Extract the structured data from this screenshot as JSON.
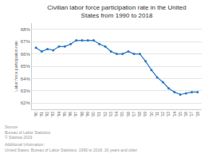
{
  "chart_data": {
    "type": "line",
    "title": "Civilian labor force participation rate in the United States from 1990 to 2018",
    "ylabel": "Labor force participation rate",
    "x": [
      1990,
      1991,
      1992,
      1993,
      1994,
      1995,
      1996,
      1997,
      1998,
      1999,
      2000,
      2001,
      2002,
      2003,
      2004,
      2005,
      2006,
      2007,
      2008,
      2009,
      2010,
      2011,
      2012,
      2013,
      2014,
      2015,
      2016,
      2017,
      2018
    ],
    "values": [
      66.5,
      66.2,
      66.4,
      66.3,
      66.6,
      66.6,
      66.8,
      67.1,
      67.1,
      67.1,
      67.1,
      66.8,
      66.6,
      66.2,
      66.0,
      66.0,
      66.2,
      66.0,
      66.0,
      65.4,
      64.7,
      64.1,
      63.7,
      63.2,
      62.9,
      62.7,
      62.8,
      62.9,
      62.9
    ],
    "color": "#2878c8",
    "marker": "circle",
    "xlim": [
      1989.3,
      2018.7
    ],
    "xticks": [
      {
        "value": 1990,
        "label": "'90"
      },
      {
        "value": 1991,
        "label": "'91"
      },
      {
        "value": 1992,
        "label": "'92"
      },
      {
        "value": 1993,
        "label": "'93"
      },
      {
        "value": 1994,
        "label": "'94"
      },
      {
        "value": 1995,
        "label": "'95"
      },
      {
        "value": 1996,
        "label": "'96"
      },
      {
        "value": 1997,
        "label": "'97"
      },
      {
        "value": 1998,
        "label": "'98"
      },
      {
        "value": 1999,
        "label": "'99"
      },
      {
        "value": 2000,
        "label": "'00"
      },
      {
        "value": 2001,
        "label": "'01"
      },
      {
        "value": 2002,
        "label": "'02"
      },
      {
        "value": 2003,
        "label": "'03"
      },
      {
        "value": 2004,
        "label": "'04"
      },
      {
        "value": 2005,
        "label": "'05"
      },
      {
        "value": 2006,
        "label": "'06"
      },
      {
        "value": 2007,
        "label": "'07"
      },
      {
        "value": 2008,
        "label": "'08"
      },
      {
        "value": 2009,
        "label": "'09"
      },
      {
        "value": 2010,
        "label": "'10"
      },
      {
        "value": 2011,
        "label": "'11"
      },
      {
        "value": 2012,
        "label": "'12"
      },
      {
        "value": 2013,
        "label": "'13"
      },
      {
        "value": 2014,
        "label": "'14"
      },
      {
        "value": 2015,
        "label": "'15"
      },
      {
        "value": 2016,
        "label": "'16"
      },
      {
        "value": 2017,
        "label": "'17"
      },
      {
        "value": 2018,
        "label": "'18"
      }
    ],
    "ylim": [
      61.5,
      68.5
    ],
    "yticks": [
      {
        "value": 62.0,
        "label": "62%"
      },
      {
        "value": 63.0,
        "label": "63%"
      },
      {
        "value": 64.0,
        "label": "64%"
      },
      {
        "value": 65.0,
        "label": "65%"
      },
      {
        "value": 66.0,
        "label": "66%"
      },
      {
        "value": 67.0,
        "label": "67%"
      },
      {
        "value": 68.0,
        "label": "68%"
      }
    ],
    "grid": true,
    "annotations": [
      "Source:\nBureau of Labor Statistics\n© Statista 2019",
      "Additional Information:\nUnited States; Bureau of Labor Statistics; 1990 to 2018; 16 years and older"
    ]
  }
}
